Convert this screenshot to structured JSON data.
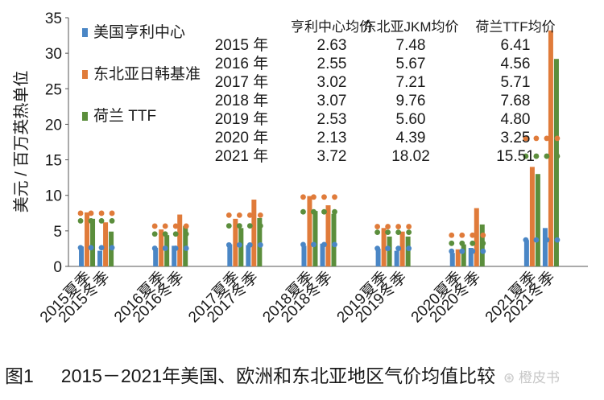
{
  "chart_data": {
    "type": "bar",
    "ylabel": "美元 / 百万英热单位",
    "ylim": [
      0,
      35
    ],
    "yticks": [
      0,
      5,
      10,
      15,
      20,
      25,
      30,
      35
    ],
    "grid": false,
    "legend_position": "top-left",
    "categories": [
      "2015夏季",
      "2015冬季",
      "2016夏季",
      "2016冬季",
      "2017夏季",
      "2017冬季",
      "2018夏季",
      "2018冬季",
      "2019夏季",
      "2019冬季",
      "2020夏季",
      "2020冬季",
      "2021夏季",
      "2021冬季"
    ],
    "series": [
      {
        "name": "美国亨利中心",
        "color": "#4a86c5",
        "values": [
          2.8,
          2.2,
          2.6,
          2.9,
          3.1,
          3.0,
          2.9,
          3.2,
          2.5,
          2.2,
          1.9,
          2.6,
          3.7,
          5.4
        ]
      },
      {
        "name": "东北亚日韩基准",
        "color": "#e07b3a",
        "values": [
          7.6,
          6.2,
          5.2,
          7.3,
          6.7,
          9.4,
          9.9,
          8.6,
          5.4,
          4.9,
          2.4,
          8.2,
          14.0,
          33.2
        ]
      },
      {
        "name": "荷兰 TTF",
        "color": "#5b8e3c",
        "values": [
          6.7,
          4.9,
          4.4,
          5.7,
          5.4,
          6.8,
          7.8,
          7.4,
          4.2,
          4.2,
          3.1,
          5.9,
          13.0,
          29.2
        ]
      }
    ],
    "annual_averages": {
      "header": [
        "亨利中心均价",
        "东北亚JKM均价",
        "荷兰TTF均价"
      ],
      "rows": [
        {
          "year": "2015 年",
          "values": [
            "2.63",
            "7.48",
            "6.41"
          ]
        },
        {
          "year": "2016 年",
          "values": [
            "2.55",
            "5.67",
            "4.56"
          ]
        },
        {
          "year": "2017 年",
          "values": [
            "3.02",
            "7.21",
            "5.71"
          ]
        },
        {
          "year": "2018 年",
          "values": [
            "3.07",
            "9.76",
            "7.68"
          ]
        },
        {
          "year": "2019 年",
          "values": [
            "2.53",
            "5.60",
            "4.80"
          ]
        },
        {
          "year": "2020 年",
          "values": [
            "2.13",
            "4.39",
            "3.25"
          ]
        },
        {
          "year": "2021 年",
          "values": [
            "3.72",
            "18.02",
            "15.51"
          ]
        }
      ]
    }
  },
  "caption": {
    "label": "图1",
    "text": "2015－2021年美国、欧洲和东北亚地区气价均值比较"
  },
  "watermark": "橙皮书"
}
